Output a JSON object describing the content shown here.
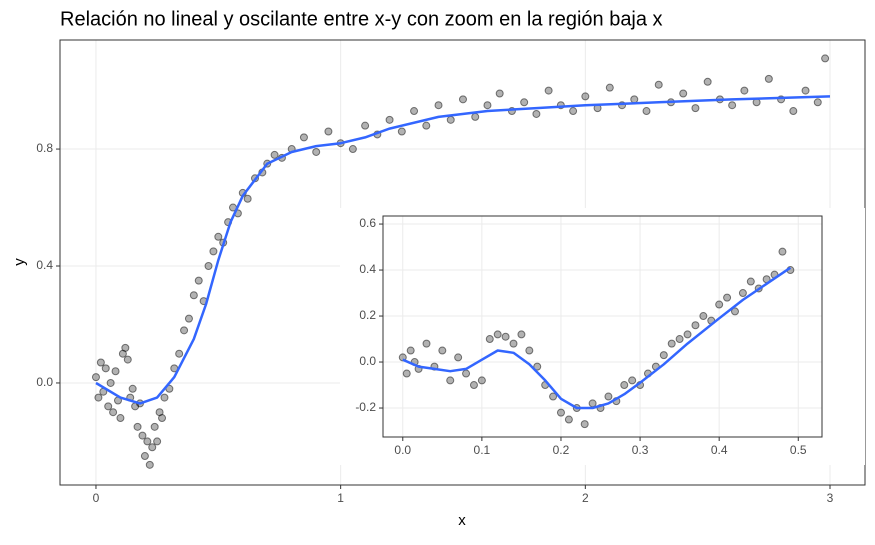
{
  "chart_data": [
    {
      "type": "scatter",
      "title": "Relación no lineal y oscilante entre x-y con zoom en la región baja x",
      "xlabel": "x",
      "ylabel": "y",
      "xlim": [
        -0.147,
        3.143
      ],
      "ylim": [
        -0.349,
        1.173
      ],
      "xticks": [
        0,
        1,
        2,
        3
      ],
      "yticks": [
        {
          "value": 0,
          "label": "0.0"
        },
        {
          "value": 0.4,
          "label": "0.4"
        },
        {
          "value": 0.8,
          "label": "0.8"
        }
      ],
      "grid": true,
      "points": {
        "color": "#000000",
        "x": [
          0.0,
          0.01,
          0.02,
          0.03,
          0.04,
          0.05,
          0.06,
          0.07,
          0.08,
          0.09,
          0.1,
          0.11,
          0.12,
          0.13,
          0.14,
          0.15,
          0.16,
          0.17,
          0.18,
          0.19,
          0.2,
          0.21,
          0.22,
          0.23,
          0.24,
          0.25,
          0.26,
          0.27,
          0.28,
          0.3,
          0.32,
          0.34,
          0.36,
          0.38,
          0.4,
          0.42,
          0.44,
          0.46,
          0.48,
          0.5,
          0.52,
          0.54,
          0.56,
          0.58,
          0.6,
          0.62,
          0.65,
          0.68,
          0.7,
          0.73,
          0.76,
          0.8,
          0.85,
          0.9,
          0.95,
          1.0,
          1.05,
          1.1,
          1.15,
          1.2,
          1.25,
          1.3,
          1.35,
          1.4,
          1.45,
          1.5,
          1.55,
          1.6,
          1.65,
          1.7,
          1.75,
          1.8,
          1.85,
          1.9,
          1.95,
          2.0,
          2.05,
          2.1,
          2.15,
          2.2,
          2.25,
          2.3,
          2.35,
          2.4,
          2.45,
          2.5,
          2.55,
          2.6,
          2.65,
          2.7,
          2.75,
          2.8,
          2.85,
          2.9,
          2.95,
          2.98
        ],
        "y": [
          0.02,
          -0.05,
          0.07,
          -0.03,
          0.05,
          -0.08,
          0.0,
          -0.1,
          0.04,
          -0.06,
          -0.12,
          0.1,
          0.12,
          0.08,
          -0.05,
          -0.02,
          -0.08,
          -0.15,
          -0.07,
          -0.18,
          -0.25,
          -0.2,
          -0.28,
          -0.22,
          -0.15,
          -0.2,
          -0.1,
          -0.12,
          -0.05,
          -0.02,
          0.05,
          0.1,
          0.18,
          0.22,
          0.3,
          0.35,
          0.28,
          0.4,
          0.45,
          0.5,
          0.48,
          0.55,
          0.6,
          0.58,
          0.65,
          0.63,
          0.7,
          0.72,
          0.75,
          0.78,
          0.77,
          0.8,
          0.84,
          0.79,
          0.86,
          0.82,
          0.8,
          0.88,
          0.85,
          0.9,
          0.86,
          0.93,
          0.88,
          0.95,
          0.9,
          0.97,
          0.91,
          0.95,
          0.99,
          0.93,
          0.96,
          0.92,
          1.0,
          0.95,
          0.93,
          0.98,
          0.94,
          1.01,
          0.95,
          0.97,
          0.93,
          1.02,
          0.96,
          0.99,
          0.94,
          1.03,
          0.97,
          0.95,
          1.0,
          0.96,
          1.04,
          0.97,
          0.93,
          1.0,
          0.96,
          1.11
        ]
      },
      "smooth": {
        "color": "#3366ff",
        "x": [
          0,
          0.1,
          0.18,
          0.25,
          0.32,
          0.4,
          0.45,
          0.5,
          0.55,
          0.6,
          0.7,
          0.8,
          0.9,
          1.0,
          1.1,
          1.2,
          1.4,
          1.6,
          1.8,
          2.0,
          2.3,
          2.6,
          3.0
        ],
        "y": [
          0,
          -0.05,
          -0.07,
          -0.05,
          0.02,
          0.15,
          0.27,
          0.42,
          0.55,
          0.64,
          0.75,
          0.79,
          0.81,
          0.82,
          0.84,
          0.87,
          0.91,
          0.93,
          0.94,
          0.95,
          0.96,
          0.97,
          0.98
        ]
      }
    },
    {
      "type": "scatter",
      "xlim": [
        -0.025,
        0.53
      ],
      "ylim": [
        -0.326,
        0.635
      ],
      "xticks": [
        {
          "value": 0,
          "label": "0.0"
        },
        0.1,
        0.2,
        0.3,
        0.4,
        0.5
      ],
      "yticks": [
        -0.2,
        {
          "value": 0,
          "label": "0.0"
        },
        0.2,
        0.4,
        0.6
      ],
      "grid": true,
      "points": {
        "color": "#000000",
        "x": [
          0.0,
          0.005,
          0.01,
          0.015,
          0.02,
          0.03,
          0.04,
          0.05,
          0.06,
          0.07,
          0.08,
          0.09,
          0.1,
          0.11,
          0.12,
          0.13,
          0.14,
          0.15,
          0.16,
          0.17,
          0.18,
          0.19,
          0.2,
          0.21,
          0.22,
          0.23,
          0.24,
          0.25,
          0.26,
          0.27,
          0.28,
          0.29,
          0.3,
          0.31,
          0.32,
          0.33,
          0.34,
          0.35,
          0.36,
          0.37,
          0.38,
          0.39,
          0.4,
          0.41,
          0.42,
          0.43,
          0.44,
          0.45,
          0.46,
          0.47,
          0.48,
          0.49
        ],
        "y": [
          0.02,
          -0.05,
          0.05,
          0.0,
          -0.03,
          0.08,
          -0.02,
          0.05,
          -0.08,
          0.02,
          -0.05,
          -0.1,
          -0.08,
          0.1,
          0.12,
          0.11,
          0.08,
          0.12,
          0.05,
          -0.02,
          -0.1,
          -0.15,
          -0.22,
          -0.25,
          -0.2,
          -0.27,
          -0.18,
          -0.2,
          -0.15,
          -0.17,
          -0.1,
          -0.08,
          -0.1,
          -0.05,
          -0.02,
          0.03,
          0.08,
          0.1,
          0.12,
          0.16,
          0.2,
          0.18,
          0.25,
          0.28,
          0.22,
          0.3,
          0.35,
          0.32,
          0.36,
          0.38,
          0.48,
          0.4
        ]
      },
      "smooth": {
        "color": "#3366ff",
        "x": [
          0,
          0.02,
          0.04,
          0.06,
          0.08,
          0.1,
          0.12,
          0.14,
          0.16,
          0.18,
          0.2,
          0.22,
          0.24,
          0.26,
          0.28,
          0.3,
          0.33,
          0.36,
          0.4,
          0.43,
          0.46,
          0.49
        ],
        "y": [
          0.01,
          -0.02,
          -0.03,
          -0.04,
          -0.03,
          0.01,
          0.05,
          0.04,
          -0.01,
          -0.08,
          -0.16,
          -0.2,
          -0.2,
          -0.18,
          -0.14,
          -0.09,
          -0.01,
          0.08,
          0.19,
          0.27,
          0.34,
          0.41
        ]
      }
    }
  ]
}
